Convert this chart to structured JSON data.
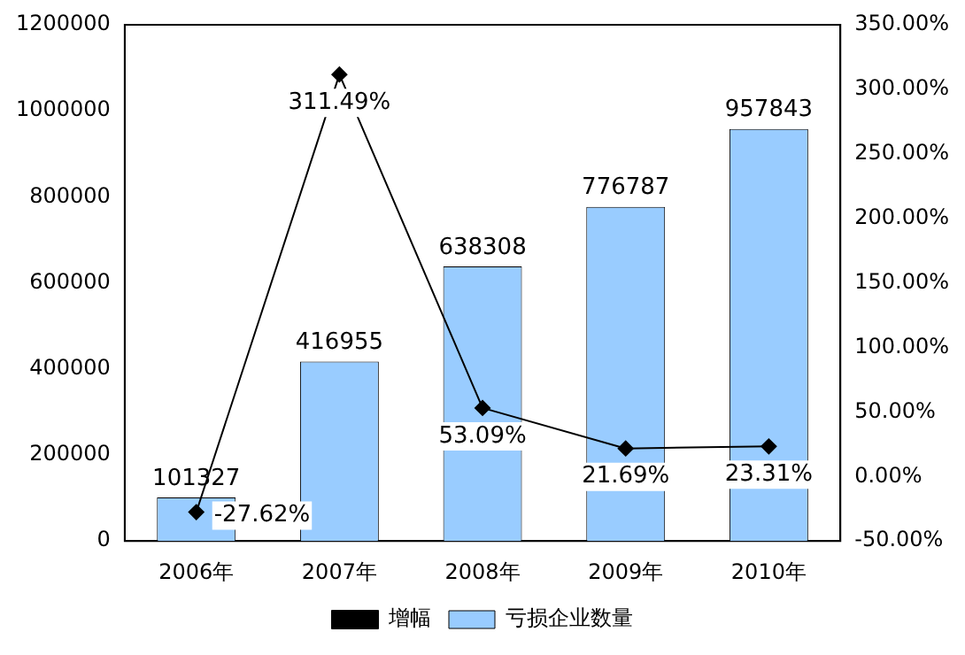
{
  "chart_data": {
    "type": "bar",
    "categories": [
      "2006年",
      "2007年",
      "2008年",
      "2009年",
      "2010年"
    ],
    "series": [
      {
        "name": "亏损企业数量",
        "color": "#99ccff",
        "values": [
          101327,
          416955,
          638308,
          776787,
          957843
        ]
      },
      {
        "name": "增幅",
        "type": "line",
        "axis": "y2",
        "color": "#000000",
        "marker": "diamond",
        "values": [
          -27.62,
          311.49,
          53.09,
          21.69,
          23.31
        ],
        "value_labels": [
          "-27.62%",
          "311.49%",
          "53.09%",
          "21.69%",
          "23.31%"
        ]
      }
    ],
    "data_labels": true,
    "ylim": [
      0,
      1200000
    ],
    "yticks": [
      0,
      200000,
      400000,
      600000,
      800000,
      1000000,
      1200000
    ],
    "y2lim": [
      -50,
      350
    ],
    "y2ticks": [
      {
        "value": -50,
        "label": "-50.00%"
      },
      {
        "value": 0,
        "label": "0.00%"
      },
      {
        "value": 50,
        "label": "50.00%"
      },
      {
        "value": 100,
        "label": "100.00%"
      },
      {
        "value": 150,
        "label": "150.00%"
      },
      {
        "value": 200,
        "label": "200.00%"
      },
      {
        "value": 250,
        "label": "250.00%"
      },
      {
        "value": 300,
        "label": "300.00%"
      },
      {
        "value": 350,
        "label": "350.00%"
      }
    ],
    "grid": false,
    "legend": "bottom"
  }
}
